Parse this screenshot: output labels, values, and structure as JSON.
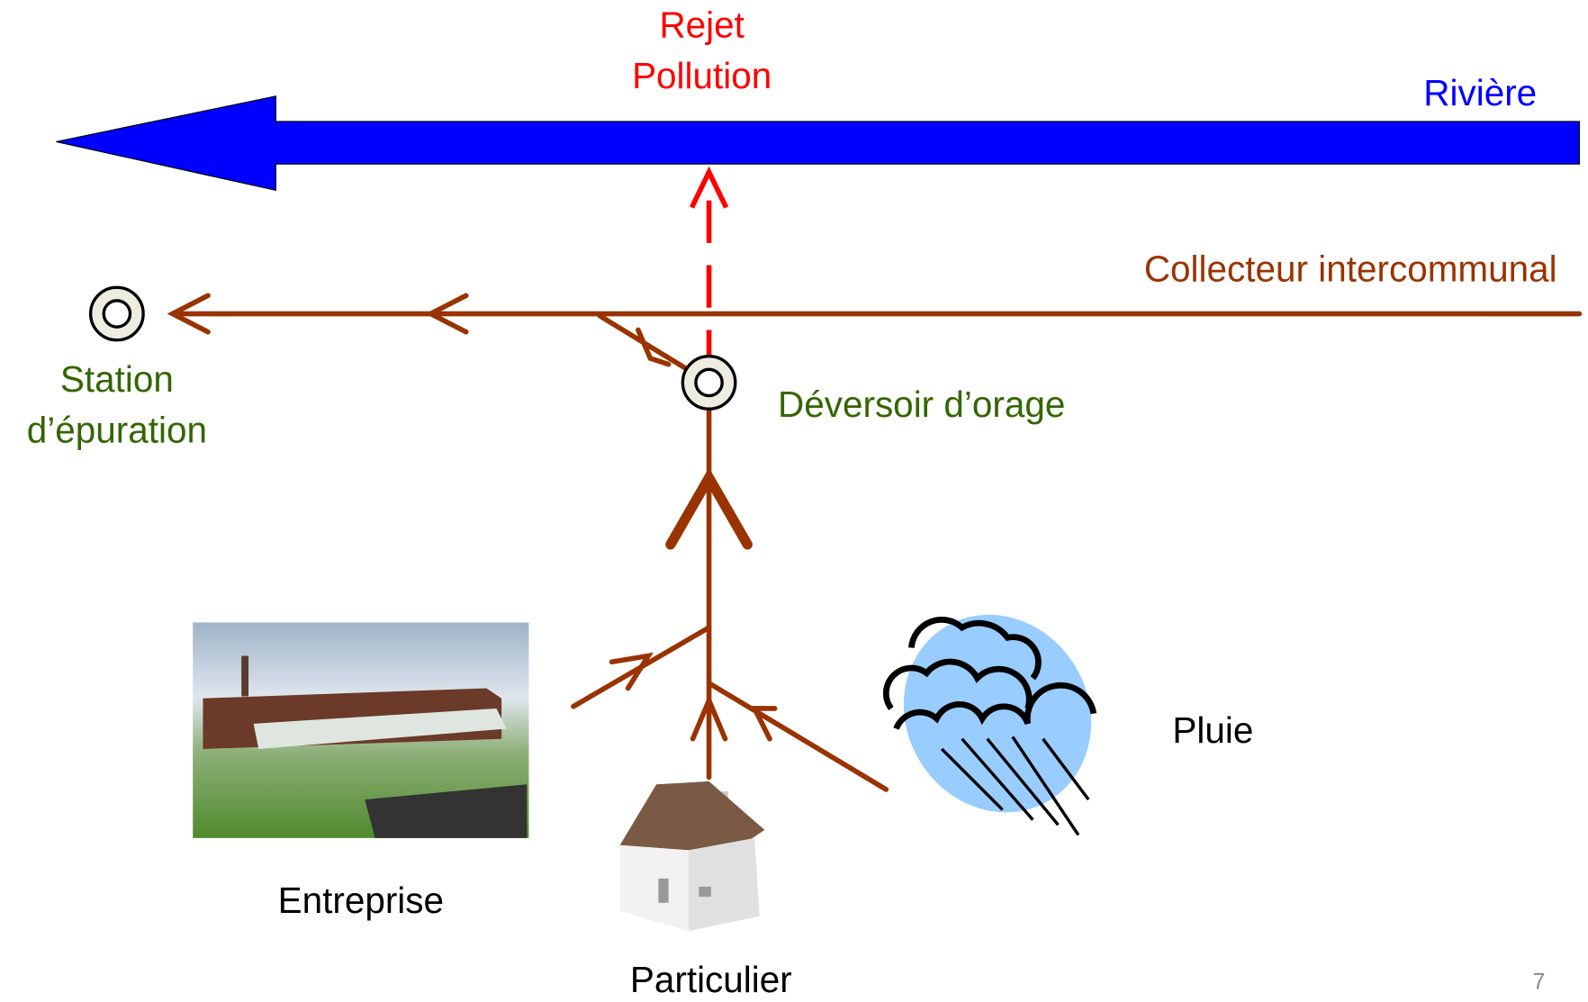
{
  "labels": {
    "rejet": [
      "Rejet",
      "Pollution"
    ],
    "riviere": "Rivière",
    "collecteur": "Collecteur intercommunal",
    "station": [
      "Station",
      "d’épuration"
    ],
    "deversoir": "Déversoir d’orage",
    "entreprise": "Entreprise",
    "particulier": "Particulier",
    "pluie": "Pluie",
    "page_number": "7"
  }
}
